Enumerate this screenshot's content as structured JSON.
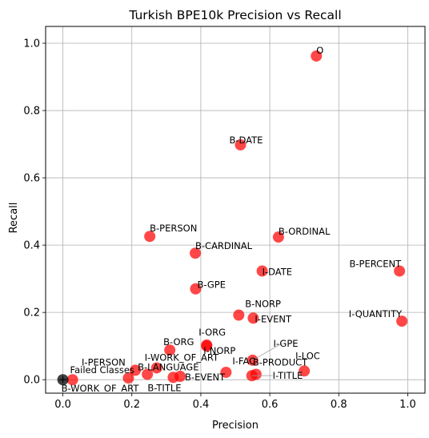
{
  "chart_data": {
    "type": "scatter",
    "title": "Turkish BPE10k Precision vs Recall",
    "xlabel": "Precision",
    "ylabel": "Recall",
    "xlim": [
      -0.05,
      1.05
    ],
    "ylim": [
      -0.04,
      1.05
    ],
    "xticks": [
      "0.0",
      "0.2",
      "0.4",
      "0.6",
      "0.8",
      "1.0"
    ],
    "yticks": [
      "0.0",
      "0.2",
      "0.4",
      "0.6",
      "0.8",
      "1.0"
    ],
    "grid": true,
    "point_color": "#ff0000",
    "failed_color": "#000000",
    "points": [
      {
        "label": "O",
        "x": 0.735,
        "y": 0.962
      },
      {
        "label": "B-DATE",
        "x": 0.515,
        "y": 0.698
      },
      {
        "label": "B-PERSON",
        "x": 0.252,
        "y": 0.426
      },
      {
        "label": "B-ORDINAL",
        "x": 0.625,
        "y": 0.424
      },
      {
        "label": "B-CARDINAL",
        "x": 0.384,
        "y": 0.376
      },
      {
        "label": "I-DATE",
        "x": 0.578,
        "y": 0.323
      },
      {
        "label": "B-PERCENT",
        "x": 0.976,
        "y": 0.323
      },
      {
        "label": "B-GPE",
        "x": 0.385,
        "y": 0.27
      },
      {
        "label": "B-NORP",
        "x": 0.51,
        "y": 0.192
      },
      {
        "label": "I-EVENT",
        "x": 0.552,
        "y": 0.183
      },
      {
        "label": "I-QUANTITY",
        "x": 0.983,
        "y": 0.174
      },
      {
        "label": "I-ORG",
        "x": 0.417,
        "y": 0.103
      },
      {
        "label": "B-ORG",
        "x": 0.31,
        "y": 0.088
      },
      {
        "label": "I-NORP",
        "x": 0.417,
        "y": 0.1
      },
      {
        "label": "I-GPE",
        "x": 0.55,
        "y": 0.058
      },
      {
        "label": "I-WORK_OF_ART",
        "x": 0.272,
        "y": 0.035
      },
      {
        "label": "I-PERSON",
        "x": 0.21,
        "y": 0.028
      },
      {
        "label": "I-FAC",
        "x": 0.473,
        "y": 0.022
      },
      {
        "label": "I-LOC",
        "x": 0.7,
        "y": 0.026
      },
      {
        "label": "B-PRODUCT",
        "x": 0.56,
        "y": 0.016
      },
      {
        "label": "B-LANGUAGE",
        "x": 0.245,
        "y": 0.016
      },
      {
        "label": "I-TITLE",
        "x": 0.548,
        "y": 0.012
      },
      {
        "label": "B-EVENT",
        "x": 0.34,
        "y": 0.01
      },
      {
        "label": "B-TITLE",
        "x": 0.32,
        "y": 0.007
      },
      {
        "label": "",
        "x": 0.19,
        "y": 0.005
      },
      {
        "label": "B-WORK_OF_ART",
        "x": 0.028,
        "y": 0.0
      }
    ],
    "failed": {
      "label": "Failed Classes",
      "x": 0.0,
      "y": 0.0
    }
  }
}
